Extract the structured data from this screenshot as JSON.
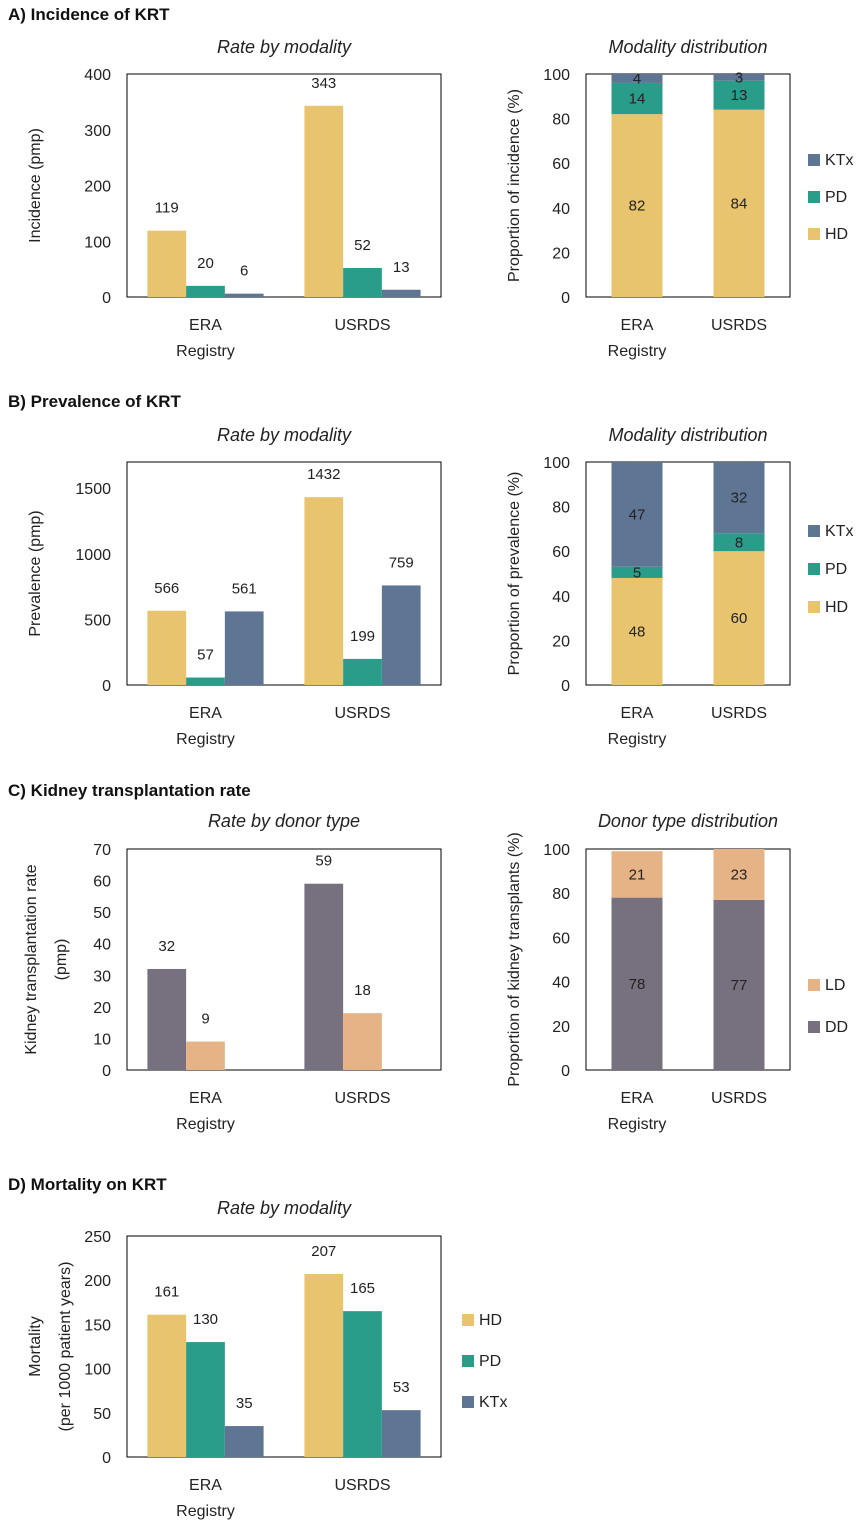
{
  "colors": {
    "HD": "#E8C46E",
    "PD": "#2A9D8A",
    "KTx": "#5F7594",
    "DD": "#76707F",
    "LD": "#E5B385"
  },
  "sections": [
    {
      "title": "A) Incidence of KRT"
    },
    {
      "title": "B) Prevalence of KRT"
    },
    {
      "title": "C) Kidney transplantation rate"
    },
    {
      "title": "D) Mortality on KRT"
    }
  ],
  "chart_data": [
    {
      "id": "incidence-rate",
      "type": "bar",
      "title": "Rate by modality",
      "categories": [
        "ERA",
        "USRDS"
      ],
      "xlabel": "Registry",
      "ylabel": "Incidence (pmp)",
      "ylim": [
        0,
        400
      ],
      "yticks": [
        0,
        100,
        200,
        300,
        400
      ],
      "series": [
        {
          "key": "HD",
          "values": [
            119,
            343
          ]
        },
        {
          "key": "PD",
          "values": [
            20,
            52
          ]
        },
        {
          "key": "KTx",
          "values": [
            6,
            13
          ]
        }
      ],
      "data_labels": [
        [
          "119",
          "343"
        ],
        [
          "20",
          "52"
        ],
        [
          "6",
          "13"
        ]
      ],
      "grid": false
    },
    {
      "id": "incidence-distribution",
      "type": "bar",
      "stacked": true,
      "title": "Modality distribution",
      "categories": [
        "ERA",
        "USRDS"
      ],
      "xlabel": "Registry",
      "ylabel": "Proportion of incidence (%)",
      "ylim": [
        0,
        100
      ],
      "yticks": [
        0,
        20,
        40,
        60,
        80,
        100
      ],
      "series": [
        {
          "key": "HD",
          "name": "HD",
          "values": [
            82,
            84
          ]
        },
        {
          "key": "PD",
          "name": "PD",
          "values": [
            14,
            13
          ]
        },
        {
          "key": "KTx",
          "name": "KTx",
          "values": [
            4,
            3
          ]
        }
      ],
      "legend": "right",
      "legend_order": [
        "KTx",
        "PD",
        "HD"
      ],
      "grid": false
    },
    {
      "id": "prevalence-rate",
      "type": "bar",
      "title": "Rate by modality",
      "categories": [
        "ERA",
        "USRDS"
      ],
      "xlabel": "Registry",
      "ylabel": "Prevalence (pmp)",
      "ylim": [
        0,
        1700
      ],
      "yticks": [
        0,
        500,
        1000,
        1500
      ],
      "series": [
        {
          "key": "HD",
          "values": [
            566,
            1432
          ]
        },
        {
          "key": "PD",
          "values": [
            57,
            199
          ]
        },
        {
          "key": "KTx",
          "values": [
            561,
            759
          ]
        }
      ],
      "data_labels": [
        [
          "566",
          "1432"
        ],
        [
          "57",
          "199"
        ],
        [
          "561",
          "759"
        ]
      ],
      "grid": false
    },
    {
      "id": "prevalence-distribution",
      "type": "bar",
      "stacked": true,
      "title": "Modality distribution",
      "categories": [
        "ERA",
        "USRDS"
      ],
      "xlabel": "Registry",
      "ylabel": "Proportion of prevalence (%)",
      "ylim": [
        0,
        100
      ],
      "yticks": [
        0,
        20,
        40,
        60,
        80,
        100
      ],
      "series": [
        {
          "key": "HD",
          "name": "HD",
          "values": [
            48,
            60
          ]
        },
        {
          "key": "PD",
          "name": "PD",
          "values": [
            5,
            8
          ]
        },
        {
          "key": "KTx",
          "name": "KTx",
          "values": [
            47,
            32
          ]
        }
      ],
      "legend": "right",
      "legend_order": [
        "KTx",
        "PD",
        "HD"
      ],
      "grid": false
    },
    {
      "id": "transplant-rate",
      "type": "bar",
      "title": "Rate by donor type",
      "categories": [
        "ERA",
        "USRDS"
      ],
      "xlabel": "Registry",
      "ylabel": "Kidney transplantation rate (pmp)",
      "ylabel_lines": [
        "Kidney transplantation rate",
        "(pmp)"
      ],
      "ylim": [
        0,
        70
      ],
      "yticks": [
        0,
        10,
        20,
        30,
        40,
        50,
        60,
        70
      ],
      "series": [
        {
          "key": "DD",
          "values": [
            32,
            59
          ]
        },
        {
          "key": "LD",
          "values": [
            9,
            18
          ]
        }
      ],
      "data_labels": [
        [
          "32",
          "59"
        ],
        [
          "9",
          "18"
        ]
      ],
      "group_slots": 3,
      "grid": false
    },
    {
      "id": "transplant-distribution",
      "type": "bar",
      "stacked": true,
      "title": "Donor type distribution",
      "categories": [
        "ERA",
        "USRDS"
      ],
      "xlabel": "Registry",
      "ylabel": "Proportion of kidney transplants (%)",
      "ylim": [
        0,
        100
      ],
      "yticks": [
        0,
        20,
        40,
        60,
        80,
        100
      ],
      "series": [
        {
          "key": "DD",
          "name": "DD",
          "values": [
            78,
            77
          ]
        },
        {
          "key": "LD",
          "name": "LD",
          "values": [
            21,
            23
          ]
        }
      ],
      "legend": "right",
      "legend_order": [
        "LD",
        "DD"
      ],
      "grid": false
    },
    {
      "id": "mortality-rate",
      "type": "bar",
      "title": "Rate by modality",
      "categories": [
        "ERA",
        "USRDS"
      ],
      "xlabel": "Registry",
      "ylabel": "Mortality (per 1000 patient years)",
      "ylabel_lines": [
        "Mortality",
        "(per 1000 patient years)"
      ],
      "ylim": [
        0,
        250
      ],
      "yticks": [
        0,
        50,
        100,
        150,
        200,
        250
      ],
      "series": [
        {
          "key": "HD",
          "name": "HD",
          "values": [
            161,
            207
          ]
        },
        {
          "key": "PD",
          "name": "PD",
          "values": [
            130,
            165
          ]
        },
        {
          "key": "KTx",
          "name": "KTx",
          "values": [
            35,
            53
          ]
        }
      ],
      "data_labels": [
        [
          "161",
          "207"
        ],
        [
          "130",
          "165"
        ],
        [
          "35",
          "53"
        ]
      ],
      "legend": "right",
      "legend_order": [
        "HD",
        "PD",
        "KTx"
      ],
      "grid": false
    }
  ]
}
